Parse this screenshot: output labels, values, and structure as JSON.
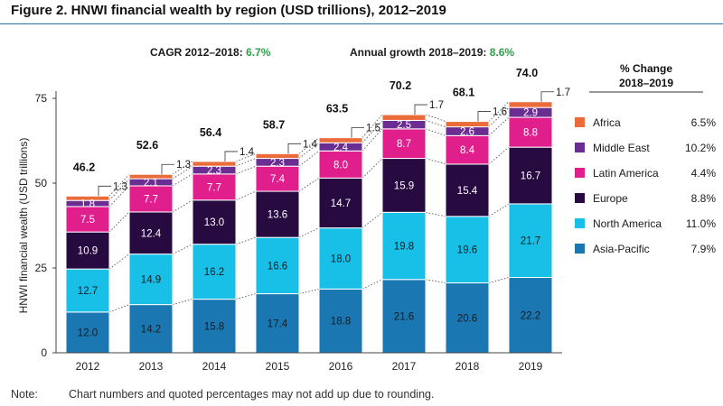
{
  "figure": {
    "title": "Figure 2. HNWI financial wealth by region (USD trillions), 2012–2019",
    "cagr_label": "CAGR 2012–2018:",
    "cagr_value": "6.7%",
    "growth_label": "Annual growth 2018–2019:",
    "growth_value": "8.6%",
    "accent_color": "#2aa147",
    "note_label": "Note:",
    "note_text": "Chart numbers and quoted percentages may not add up due to rounding."
  },
  "chart_data": {
    "type": "bar",
    "stacked": true,
    "title": "HNWI financial wealth by region (USD trillions), 2012–2019",
    "xlabel": "",
    "ylabel": "HNWI financial wealth (USD trillions)",
    "ylim": [
      0,
      75
    ],
    "yticks": [
      0,
      25,
      50,
      75
    ],
    "categories": [
      "2012",
      "2013",
      "2014",
      "2015",
      "2016",
      "2017",
      "2018",
      "2019"
    ],
    "series": [
      {
        "name": "Asia-Pacific",
        "color": "#1a77b2",
        "values": [
          12.0,
          14.2,
          15.8,
          17.4,
          18.8,
          21.6,
          20.6,
          22.2
        ]
      },
      {
        "name": "North America",
        "color": "#18bfe6",
        "values": [
          12.7,
          14.9,
          16.2,
          16.6,
          18.0,
          19.8,
          19.6,
          21.7
        ]
      },
      {
        "name": "Europe",
        "color": "#260a40",
        "values": [
          10.9,
          12.4,
          13.0,
          13.6,
          14.7,
          15.9,
          15.4,
          16.7
        ]
      },
      {
        "name": "Latin America",
        "color": "#e01e8c",
        "values": [
          7.5,
          7.7,
          7.7,
          7.4,
          8.0,
          8.7,
          8.4,
          8.8
        ]
      },
      {
        "name": "Middle East",
        "color": "#6a2d91",
        "values": [
          1.8,
          2.1,
          2.3,
          2.3,
          2.4,
          2.5,
          2.6,
          2.9
        ]
      },
      {
        "name": "Africa",
        "color": "#ec6b3a",
        "values": [
          1.3,
          1.3,
          1.4,
          1.4,
          1.5,
          1.7,
          1.6,
          1.7
        ]
      }
    ],
    "totals": [
      "46.2",
      "52.6",
      "56.4",
      "58.7",
      "63.5",
      "70.2",
      "68.1",
      "74.0"
    ],
    "labels": {
      "Asia-Pacific": [
        "12.0",
        "14.2",
        "15.8",
        "17.4",
        "18.8",
        "21.6",
        "20.6",
        "22.2"
      ],
      "North America": [
        "12.7",
        "14.9",
        "16.2",
        "16.6",
        "18.0",
        "19.8",
        "19.6",
        "21.7"
      ],
      "Europe": [
        "10.9",
        "12.4",
        "13.0",
        "13.6",
        "14.7",
        "15.9",
        "15.4",
        "16.7"
      ],
      "Latin America": [
        "7.5",
        "7.7",
        "7.7",
        "7.4",
        "8.0",
        "8.7",
        "8.4",
        "8.8"
      ],
      "Middle East": [
        "1.8",
        "2.1",
        "2.3",
        "2.3",
        "2.4",
        "2.5",
        "2.6",
        "2.9"
      ],
      "Africa": [
        "1.3",
        "1.3",
        "1.4",
        "1.4",
        "1.5",
        "1.7",
        "1.6",
        "1.7"
      ]
    },
    "change_header": [
      "% Change",
      "2018–2019"
    ],
    "legend": [
      {
        "name": "Africa",
        "change": "6.5%"
      },
      {
        "name": "Middle East",
        "change": "10.2%"
      },
      {
        "name": "Latin America",
        "change": "4.4%"
      },
      {
        "name": "Europe",
        "change": "8.8%"
      },
      {
        "name": "North America",
        "change": "11.0%"
      },
      {
        "name": "Asia-Pacific",
        "change": "7.9%"
      }
    ]
  }
}
